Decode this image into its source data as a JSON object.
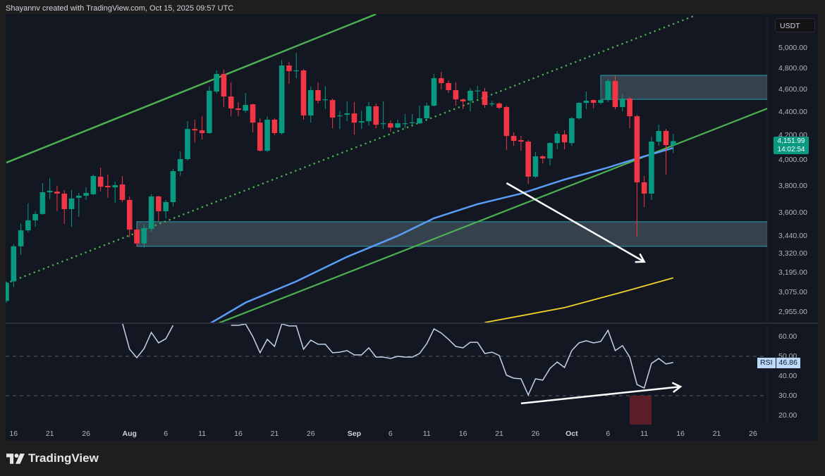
{
  "header": {
    "attribution": "Shayannv created with TradingView.com, Oct 15, 2025 09:57 UTC"
  },
  "branding": {
    "logo_text": "TradingView"
  },
  "colors": {
    "up": "#089981",
    "down": "#f23645",
    "background": "#131722",
    "channel": "#4caf50",
    "ma_fast": "#5b9cf6",
    "ma_slow": "#f2d32b",
    "zone_fill": "#3c4a55",
    "zone_border": "#2a9fb0",
    "rsi_line": "#c3d3ea",
    "rsi_highlight": "#5c1f2a",
    "arrow": "#ffffff"
  },
  "price_axis": {
    "currency": "USDT",
    "labels": [
      "5,000.00",
      "4,800.00",
      "4,600.00",
      "4,400.00",
      "4,200.00",
      "4,000.00",
      "3,800.00",
      "3,600.00",
      "3,440.00",
      "3,320.00",
      "3,195.00",
      "3,075.00",
      "2,955.00"
    ],
    "scale": "log",
    "last_price": "4,151.99",
    "countdown": "14:02:54"
  },
  "rsi_axis": {
    "labels": [
      "60.00",
      "50.00",
      "40.00",
      "30.00",
      "20.00"
    ],
    "tag_label": "RSI",
    "tag_value": "46.86",
    "levels": [
      50,
      30
    ]
  },
  "time_axis": [
    {
      "label": "16",
      "date": "2025-07-16"
    },
    {
      "label": "21",
      "date": "2025-07-21"
    },
    {
      "label": "26",
      "date": "2025-07-26"
    },
    {
      "label": "Aug",
      "date": "2025-08-01",
      "major": true
    },
    {
      "label": "6",
      "date": "2025-08-06"
    },
    {
      "label": "11",
      "date": "2025-08-11"
    },
    {
      "label": "16",
      "date": "2025-08-16"
    },
    {
      "label": "21",
      "date": "2025-08-21"
    },
    {
      "label": "26",
      "date": "2025-08-26"
    },
    {
      "label": "Sep",
      "date": "2025-09-01",
      "major": true
    },
    {
      "label": "6",
      "date": "2025-09-06"
    },
    {
      "label": "11",
      "date": "2025-09-11"
    },
    {
      "label": "16",
      "date": "2025-09-16"
    },
    {
      "label": "21",
      "date": "2025-09-21"
    },
    {
      "label": "26",
      "date": "2025-09-26"
    },
    {
      "label": "Oct",
      "date": "2025-10-01",
      "major": true
    },
    {
      "label": "6",
      "date": "2025-10-06"
    },
    {
      "label": "11",
      "date": "2025-10-11"
    },
    {
      "label": "16",
      "date": "2025-10-16"
    },
    {
      "label": "21",
      "date": "2025-10-21"
    },
    {
      "label": "26",
      "date": "2025-10-26"
    }
  ],
  "chart_data": {
    "type": "candlestick",
    "columns": [
      "date",
      "open",
      "high",
      "low",
      "close"
    ],
    "candles": [
      [
        "2025-07-15",
        3020,
        3140,
        3010,
        3131
      ],
      [
        "2025-07-16",
        3140,
        3381,
        3105,
        3367
      ],
      [
        "2025-07-17",
        3367,
        3525,
        3311,
        3476
      ],
      [
        "2025-07-18",
        3476,
        3667,
        3462,
        3546
      ],
      [
        "2025-07-19",
        3546,
        3611,
        3501,
        3591
      ],
      [
        "2025-07-20",
        3591,
        3819,
        3586,
        3750
      ],
      [
        "2025-07-21",
        3750,
        3857,
        3698,
        3761
      ],
      [
        "2025-07-22",
        3755,
        3798,
        3611,
        3740
      ],
      [
        "2025-07-23",
        3740,
        3766,
        3521,
        3626
      ],
      [
        "2025-07-24",
        3626,
        3766,
        3501,
        3704
      ],
      [
        "2025-07-25",
        3709,
        3745,
        3571,
        3724
      ],
      [
        "2025-07-26",
        3724,
        3787,
        3693,
        3745
      ],
      [
        "2025-07-27",
        3735,
        3884,
        3729,
        3873
      ],
      [
        "2025-07-28",
        3868,
        3939,
        3756,
        3792
      ],
      [
        "2025-07-29",
        3798,
        3884,
        3709,
        3787
      ],
      [
        "2025-07-30",
        3787,
        3830,
        3672,
        3803
      ],
      [
        "2025-07-31",
        3809,
        3873,
        3677,
        3693
      ],
      [
        "2025-08-01",
        3693,
        3719,
        3428,
        3481
      ],
      [
        "2025-08-02",
        3481,
        3491,
        3367,
        3386
      ],
      [
        "2025-08-03",
        3386,
        3521,
        3358,
        3491
      ],
      [
        "2025-08-04",
        3486,
        3735,
        3462,
        3719
      ],
      [
        "2025-08-05",
        3719,
        3724,
        3541,
        3611
      ],
      [
        "2025-08-06",
        3611,
        3693,
        3561,
        3677
      ],
      [
        "2025-08-07",
        3677,
        3928,
        3646,
        3911
      ],
      [
        "2025-08-08",
        3911,
        4068,
        3873,
        4006
      ],
      [
        "2025-08-09",
        4006,
        4320,
        3995,
        4254
      ],
      [
        "2025-08-10",
        4254,
        4333,
        4142,
        4242
      ],
      [
        "2025-08-11",
        4242,
        4363,
        4166,
        4219
      ],
      [
        "2025-08-12",
        4219,
        4629,
        4213,
        4590
      ],
      [
        "2025-08-13",
        4583,
        4780,
        4564,
        4746
      ],
      [
        "2025-08-14",
        4746,
        4786,
        4443,
        4538
      ],
      [
        "2025-08-15",
        4538,
        4668,
        4363,
        4431
      ],
      [
        "2025-08-16",
        4431,
        4487,
        4363,
        4419
      ],
      [
        "2025-08-17",
        4412,
        4570,
        4394,
        4462
      ],
      [
        "2025-08-18",
        4468,
        4475,
        4225,
        4308
      ],
      [
        "2025-08-19",
        4308,
        4345,
        4068,
        4073
      ],
      [
        "2025-08-20",
        4073,
        4363,
        4062,
        4333
      ],
      [
        "2025-08-21",
        4333,
        4345,
        4201,
        4219
      ],
      [
        "2025-08-22",
        4219,
        4881,
        4207,
        4827
      ],
      [
        "2025-08-23",
        4827,
        4860,
        4655,
        4773
      ],
      [
        "2025-08-24",
        4773,
        4950,
        4706,
        4780
      ],
      [
        "2025-08-25",
        4780,
        4793,
        4333,
        4370
      ],
      [
        "2025-08-26",
        4370,
        4629,
        4308,
        4596
      ],
      [
        "2025-08-27",
        4596,
        4668,
        4475,
        4500
      ],
      [
        "2025-08-28",
        4506,
        4629,
        4425,
        4512
      ],
      [
        "2025-08-29",
        4506,
        4519,
        4260,
        4351
      ],
      [
        "2025-08-30",
        4363,
        4412,
        4254,
        4370
      ],
      [
        "2025-08-31",
        4376,
        4494,
        4320,
        4388
      ],
      [
        "2025-09-01",
        4388,
        4487,
        4207,
        4308
      ],
      [
        "2025-09-02",
        4308,
        4412,
        4254,
        4320
      ],
      [
        "2025-09-03",
        4320,
        4487,
        4284,
        4450
      ],
      [
        "2025-09-04",
        4450,
        4475,
        4260,
        4290
      ],
      [
        "2025-09-05",
        4296,
        4494,
        4254,
        4302
      ],
      [
        "2025-09-06",
        4302,
        4327,
        4231,
        4266
      ],
      [
        "2025-09-07",
        4266,
        4333,
        4260,
        4302
      ],
      [
        "2025-09-08",
        4296,
        4382,
        4260,
        4302
      ],
      [
        "2025-09-09",
        4308,
        4382,
        4272,
        4310
      ],
      [
        "2025-09-10",
        4302,
        4456,
        4296,
        4345
      ],
      [
        "2025-09-11",
        4345,
        4481,
        4333,
        4456
      ],
      [
        "2025-09-12",
        4456,
        4746,
        4450,
        4706
      ],
      [
        "2025-09-13",
        4706,
        4766,
        4603,
        4661
      ],
      [
        "2025-09-14",
        4661,
        4687,
        4570,
        4596
      ],
      [
        "2025-09-15",
        4596,
        4668,
        4456,
        4512
      ],
      [
        "2025-09-16",
        4512,
        4519,
        4425,
        4494
      ],
      [
        "2025-09-17",
        4500,
        4616,
        4406,
        4590
      ],
      [
        "2025-09-18",
        4590,
        4635,
        4519,
        4592
      ],
      [
        "2025-09-19",
        4583,
        4616,
        4437,
        4462
      ],
      [
        "2025-09-20",
        4468,
        4500,
        4450,
        4475
      ],
      [
        "2025-09-21",
        4475,
        4487,
        4425,
        4437
      ],
      [
        "2025-09-22",
        4443,
        4456,
        4079,
        4195
      ],
      [
        "2025-09-23",
        4195,
        4225,
        4113,
        4154
      ],
      [
        "2025-09-24",
        4160,
        4195,
        4073,
        4148
      ],
      [
        "2025-09-25",
        4148,
        4160,
        3814,
        3868
      ],
      [
        "2025-09-26",
        3868,
        4062,
        3857,
        4028
      ],
      [
        "2025-09-27",
        4028,
        4039,
        3972,
        4011
      ],
      [
        "2025-09-28",
        4011,
        4142,
        3955,
        4136
      ],
      [
        "2025-09-29",
        4136,
        4237,
        4085,
        4213
      ],
      [
        "2025-09-30",
        4207,
        4242,
        4085,
        4142
      ],
      [
        "2025-10-01",
        4136,
        4357,
        4113,
        4345
      ],
      [
        "2025-10-02",
        4345,
        4487,
        4333,
        4481
      ],
      [
        "2025-10-03",
        4481,
        4583,
        4425,
        4500
      ],
      [
        "2025-10-04",
        4506,
        4512,
        4431,
        4481
      ],
      [
        "2025-10-05",
        4481,
        4616,
        4468,
        4506
      ],
      [
        "2025-10-06",
        4506,
        4700,
        4487,
        4680
      ],
      [
        "2025-10-07",
        4680,
        4733,
        4425,
        4443
      ],
      [
        "2025-10-08",
        4443,
        4557,
        4406,
        4519
      ],
      [
        "2025-10-09",
        4519,
        4532,
        4260,
        4363
      ],
      [
        "2025-10-10",
        4363,
        4376,
        3433,
        3825
      ],
      [
        "2025-10-11",
        3825,
        3873,
        3641,
        3740
      ],
      [
        "2025-10-12",
        3740,
        4189,
        3693,
        4148
      ],
      [
        "2025-10-13",
        4148,
        4290,
        4113,
        4237
      ],
      [
        "2025-10-14",
        4237,
        4254,
        3884,
        4119
      ],
      [
        "2025-10-15",
        4119,
        4213,
        4056,
        4151.99
      ]
    ],
    "rsi": [
      null,
      null,
      null,
      null,
      null,
      null,
      null,
      null,
      null,
      null,
      null,
      null,
      null,
      null,
      null,
      null,
      67,
      53.6,
      49.3,
      53.9,
      62.1,
      56.8,
      58.9,
      65.7,
      null,
      null,
      null,
      null,
      null,
      null,
      null,
      65.7,
      65.7,
      66.4,
      60,
      51.8,
      58.6,
      55,
      66.4,
      65.4,
      65.4,
      53.6,
      58.2,
      56.1,
      56.1,
      51.8,
      52.1,
      52.9,
      50.7,
      50.7,
      54.3,
      49.6,
      49.6,
      48.9,
      50,
      49.6,
      49.6,
      51.4,
      56.4,
      63.9,
      61.8,
      58.6,
      55,
      54.3,
      57.1,
      57.1,
      51.4,
      52.1,
      50.4,
      40.4,
      38.9,
      38.6,
      30.4,
      38.6,
      37.9,
      43.9,
      47.1,
      44.3,
      52.9,
      56.8,
      57.9,
      56.8,
      57.5,
      63.2,
      52.9,
      55.4,
      49.6,
      35.7,
      33.9,
      46.4,
      48.9,
      46.1,
      46.86
    ],
    "price_range": [
      2900,
      5400
    ],
    "rsi_range": [
      14,
      66.5
    ],
    "drawings": {
      "channel_upper": [
        [
          "2025-07-15",
          3978
        ],
        [
          "2025-09-04",
          5347
        ]
      ],
      "channel_mid_dotted": [
        [
          "2025-07-15",
          3128
        ],
        [
          "2025-10-18",
          5332
        ]
      ],
      "channel_lower": [
        [
          "2025-08-13",
          2885
        ],
        [
          "2025-10-29",
          4456
        ]
      ],
      "ma_fast": [
        [
          "2025-08-12",
          2885
        ],
        [
          "2025-08-17",
          3010
        ],
        [
          "2025-08-24",
          3140
        ],
        [
          "2025-08-31",
          3297
        ],
        [
          "2025-09-07",
          3438
        ],
        [
          "2025-09-12",
          3561
        ],
        [
          "2025-09-18",
          3662
        ],
        [
          "2025-09-24",
          3740
        ],
        [
          "2025-09-30",
          3846
        ],
        [
          "2025-10-06",
          3939
        ],
        [
          "2025-10-10",
          4011
        ],
        [
          "2025-10-15",
          4096
        ]
      ],
      "ma_slow": [
        [
          "2025-09-19",
          2893
        ],
        [
          "2025-09-30",
          2980
        ],
        [
          "2025-10-08",
          3074
        ],
        [
          "2025-10-15",
          3162
        ]
      ],
      "zones": [
        {
          "from": "2025-08-02",
          "to": "2025-10-28",
          "low": 3367,
          "high": 3536
        },
        {
          "from": "2025-10-05",
          "to": "2025-10-28",
          "low": 4512,
          "high": 4733
        }
      ],
      "price_arrow": [
        [
          "2025-09-22",
          3819
        ],
        [
          "2025-10-11",
          3265
        ]
      ],
      "rsi_arrow": [
        [
          "2025-09-24",
          26.1
        ],
        [
          "2025-10-16",
          34.6
        ]
      ],
      "rsi_highlight": {
        "from": "2025-10-09",
        "to": "2025-10-12",
        "low": 15.4,
        "high": 30
      }
    }
  }
}
